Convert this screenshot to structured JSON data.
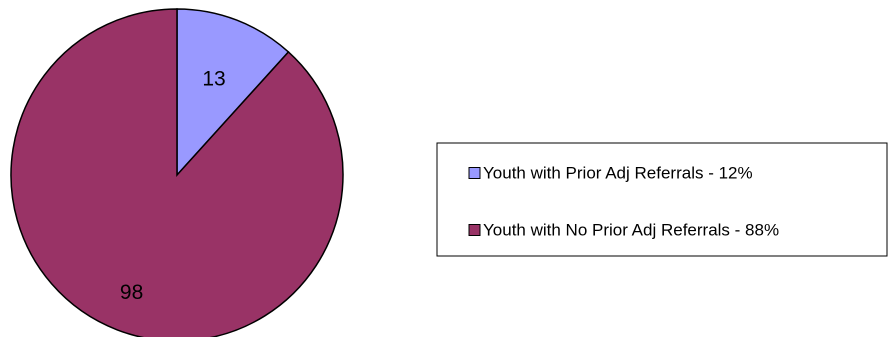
{
  "chart_data": {
    "type": "pie",
    "categories": [
      "Youth with Prior Adj Referrals - 12%",
      "Youth with No Prior Adj Referrals - 88%"
    ],
    "values": [
      13,
      98
    ],
    "data_labels": [
      "13",
      "98"
    ],
    "colors": [
      "#9999ff",
      "#993366"
    ],
    "legend_placement": "right"
  }
}
